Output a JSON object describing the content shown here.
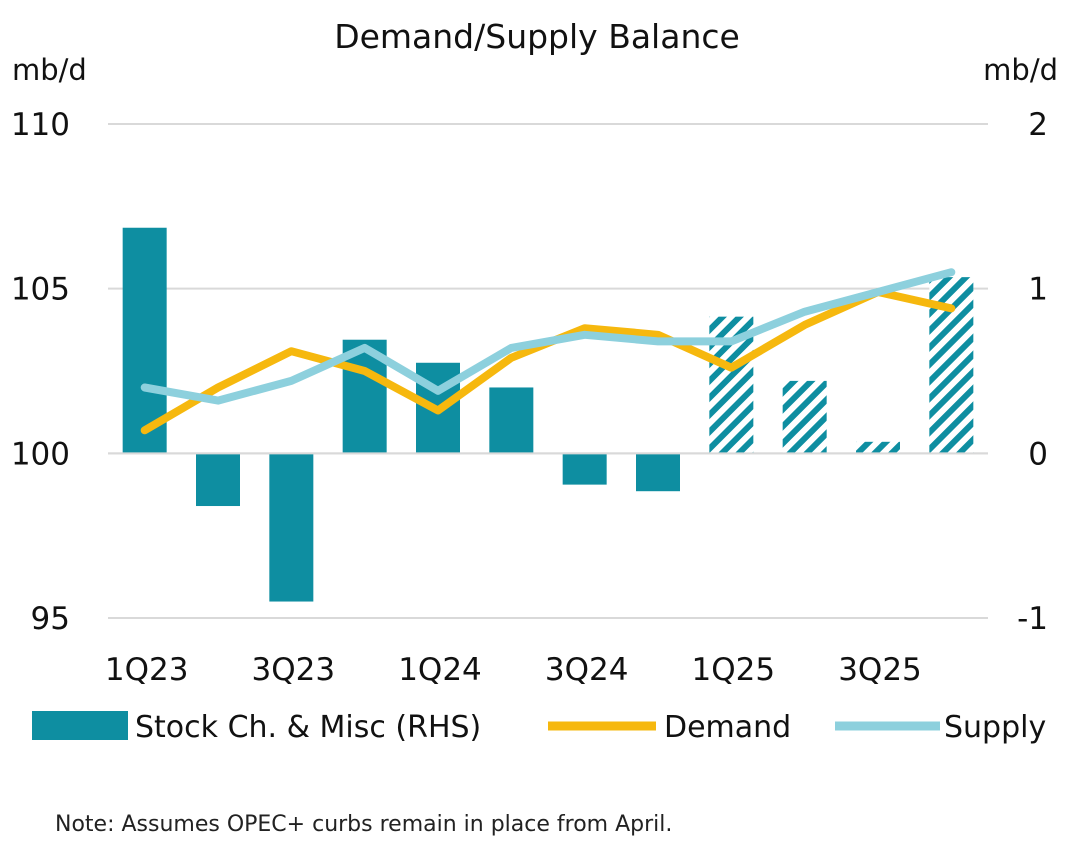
{
  "chart_data": {
    "type": "bar+line",
    "title": "Demand/Supply Balance",
    "left_unit": "mb/d",
    "right_unit": "mb/d",
    "left_axis": {
      "min": 95,
      "max": 110,
      "ticks": [
        95,
        100,
        105,
        110
      ]
    },
    "right_axis": {
      "min": -1,
      "max": 2,
      "ticks": [
        -1,
        0,
        1,
        2
      ]
    },
    "categories": [
      "1Q23",
      "2Q23",
      "3Q23",
      "4Q23",
      "1Q24",
      "2Q24",
      "3Q24",
      "4Q24",
      "1Q25",
      "2Q25",
      "3Q25",
      "4Q25"
    ],
    "x_tick_labels": [
      "1Q23",
      "",
      "3Q23",
      "",
      "1Q24",
      "",
      "3Q24",
      "",
      "1Q25",
      "",
      "3Q25",
      ""
    ],
    "series": [
      {
        "name": "Stock Ch. & Misc (RHS)",
        "kind": "bar",
        "axis": "right",
        "color": "#0e8ea1",
        "forecast_from_index": 8,
        "values": [
          1.37,
          -0.32,
          -0.9,
          0.69,
          0.55,
          0.4,
          -0.19,
          -0.23,
          0.83,
          0.44,
          0.07,
          1.07
        ]
      },
      {
        "name": "Demand",
        "kind": "line",
        "axis": "left",
        "color": "#f6b80e",
        "values": [
          100.7,
          102.0,
          103.1,
          102.5,
          101.3,
          102.9,
          103.8,
          103.6,
          102.6,
          103.9,
          104.9,
          104.4
        ]
      },
      {
        "name": "Supply",
        "kind": "line",
        "axis": "left",
        "color": "#8dd0dd",
        "values": [
          102.0,
          101.6,
          102.2,
          103.2,
          101.9,
          103.2,
          103.6,
          103.4,
          103.4,
          104.3,
          104.9,
          105.5
        ]
      }
    ],
    "legend": [
      "Stock Ch. & Misc (RHS)",
      "Demand",
      "Supply"
    ],
    "note": "Note: Assumes OPEC+ curbs remain in place from April."
  }
}
